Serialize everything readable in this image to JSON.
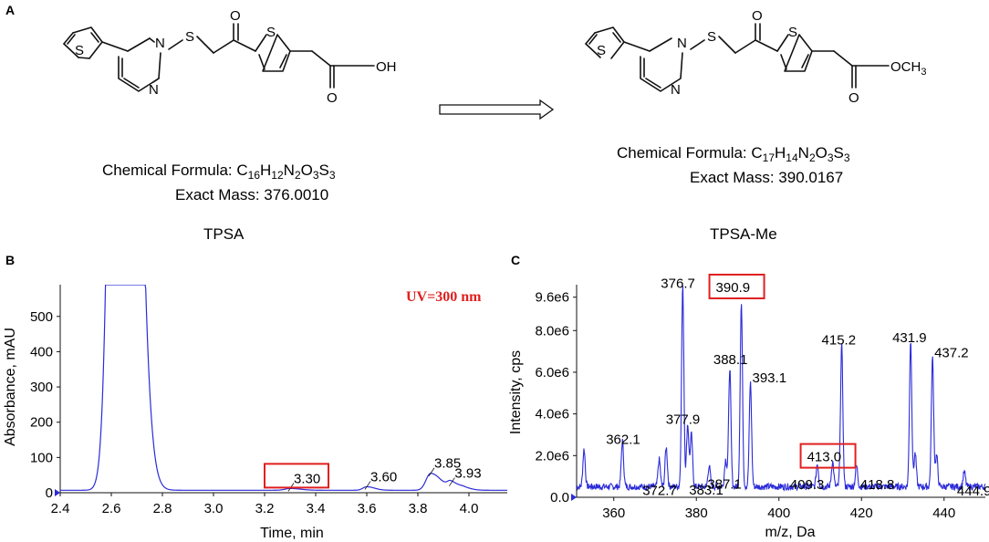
{
  "panels": {
    "A": {
      "label": "A",
      "left": {
        "formula_lead": "Chemical Formula: ",
        "formula": [
          "C",
          "16",
          "H",
          "12",
          "N",
          "2",
          "O",
          "3",
          "S",
          "3"
        ],
        "mass": "Exact Mass: 376.0010",
        "name": "TPSA",
        "atoms": [
          "S",
          "N",
          "N",
          "S",
          "O",
          "S",
          "OH",
          "O"
        ]
      },
      "right": {
        "formula_lead": "Chemical Formula: ",
        "formula": [
          "C",
          "17",
          "H",
          "14",
          "N",
          "2",
          "O",
          "3",
          "S",
          "3"
        ],
        "mass": "Exact Mass: 390.0167",
        "name": "TPSA-Me",
        "atoms": [
          "S",
          "N",
          "N",
          "S",
          "O",
          "S",
          "OCH",
          "3",
          "O"
        ]
      }
    },
    "B": {
      "label": "B"
    },
    "C": {
      "label": "C"
    }
  },
  "colors": {
    "trace": "#2b2bd9",
    "highlight": "#e0201f",
    "text": "#111111"
  },
  "chart_data": [
    {
      "type": "line",
      "xlabel": "Time, min",
      "ylabel": "Absorbance, mAU",
      "annotation": "UV=300 nm",
      "xlim": [
        2.4,
        4.15
      ],
      "ylim": [
        0,
        590
      ],
      "xticks": [
        2.4,
        2.6,
        2.8,
        3.0,
        3.2,
        3.4,
        3.6,
        3.8,
        4.0
      ],
      "yticks": [
        0,
        100,
        200,
        300,
        400,
        500
      ],
      "xtick_labels": [
        "2.4",
        "2.6",
        "2.8",
        "3.0",
        "3.2",
        "3.4",
        "3.6",
        "3.8",
        "4.0"
      ],
      "ytick_labels": [
        "0",
        "100",
        "200",
        "300",
        "400",
        "500"
      ],
      "baseline": 7,
      "peaks": [
        {
          "x": 2.64,
          "height": 4000,
          "width": 0.032,
          "tail": 0.5
        },
        {
          "x": 3.3,
          "height": 5,
          "width": 0.02,
          "tail": 1
        },
        {
          "x": 3.6,
          "height": 10,
          "width": 0.015,
          "tail": 1
        },
        {
          "x": 3.85,
          "height": 48,
          "width": 0.018,
          "tail": 1.3
        },
        {
          "x": 3.93,
          "height": 20,
          "width": 0.014,
          "tail": 1.2
        },
        {
          "x": 3.98,
          "height": 6,
          "width": 0.015,
          "tail": 1
        }
      ],
      "peak_labels": [
        {
          "x": 3.3,
          "y": 12,
          "text": "3.30",
          "boxed": true
        },
        {
          "x": 3.6,
          "y": 17,
          "text": "3.60",
          "boxed": false
        },
        {
          "x": 3.85,
          "y": 55,
          "text": "3.85",
          "boxed": false
        },
        {
          "x": 3.93,
          "y": 27,
          "text": "3.93",
          "boxed": false
        }
      ]
    },
    {
      "type": "line",
      "xlabel": "m/z, Da",
      "ylabel": "Intensity, cps",
      "xlim": [
        351,
        450
      ],
      "ylim": [
        0,
        10200000
      ],
      "xticks": [
        360,
        380,
        400,
        420,
        440
      ],
      "yticks": [
        0,
        2000000,
        4000000,
        6000000,
        8000000,
        9600000
      ],
      "xtick_labels": [
        "360",
        "380",
        "400",
        "420",
        "440"
      ],
      "ytick_labels": [
        "0.0",
        "2.0e6",
        "4.0e6",
        "6.0e6",
        "8.0e6",
        "9.6e6"
      ],
      "peaks": [
        {
          "x": 352.8,
          "y": 1800000
        },
        {
          "x": 362.1,
          "y": 2200000
        },
        {
          "x": 371.0,
          "y": 1300000
        },
        {
          "x": 372.7,
          "y": 1900000
        },
        {
          "x": 376.7,
          "y": 9600000
        },
        {
          "x": 377.9,
          "y": 3000000
        },
        {
          "x": 378.8,
          "y": 2500000
        },
        {
          "x": 383.1,
          "y": 1000000
        },
        {
          "x": 387.1,
          "y": 1300000
        },
        {
          "x": 388.1,
          "y": 5700000
        },
        {
          "x": 390.9,
          "y": 8800000
        },
        {
          "x": 393.1,
          "y": 5000000
        },
        {
          "x": 409.3,
          "y": 1100000
        },
        {
          "x": 413.0,
          "y": 1200000
        },
        {
          "x": 415.2,
          "y": 6800000
        },
        {
          "x": 418.8,
          "y": 1000000
        },
        {
          "x": 431.9,
          "y": 7000000
        },
        {
          "x": 433.0,
          "y": 1600000
        },
        {
          "x": 437.2,
          "y": 6200000
        },
        {
          "x": 438.2,
          "y": 1500000
        },
        {
          "x": 444.9,
          "y": 700000
        }
      ],
      "peak_labels": [
        {
          "x": 362.1,
          "y": 2200000,
          "text": "362.1",
          "boxed": false
        },
        {
          "x": 372.7,
          "y": 900000,
          "text": "372.7",
          "boxed": false
        },
        {
          "x": 376.7,
          "y": 9600000,
          "text": "376.7",
          "boxed": false
        },
        {
          "x": 377.9,
          "y": 3000000,
          "text": "377.9",
          "boxed": false
        },
        {
          "x": 383.1,
          "y": 1000000,
          "text": "383.1",
          "boxed": false
        },
        {
          "x": 387.1,
          "y": 1300000,
          "text": "387.1",
          "boxed": false
        },
        {
          "x": 388.1,
          "y": 5700000,
          "text": "388.1",
          "boxed": false
        },
        {
          "x": 390.9,
          "y": 8800000,
          "text": "390.9",
          "boxed": true
        },
        {
          "x": 393.1,
          "y": 5000000,
          "text": "393.1",
          "boxed": false
        },
        {
          "x": 409.3,
          "y": 1100000,
          "text": "409.3",
          "boxed": false
        },
        {
          "x": 413.0,
          "y": 1200000,
          "text": "413.0",
          "boxed": true
        },
        {
          "x": 415.2,
          "y": 6800000,
          "text": "415.2",
          "boxed": false
        },
        {
          "x": 418.8,
          "y": 1000000,
          "text": "418.8",
          "boxed": false
        },
        {
          "x": 431.9,
          "y": 7000000,
          "text": "431.9",
          "boxed": false
        },
        {
          "x": 437.2,
          "y": 6200000,
          "text": "437.2",
          "boxed": false
        },
        {
          "x": 444.9,
          "y": 700000,
          "text": "444.9",
          "boxed": false
        }
      ]
    }
  ]
}
